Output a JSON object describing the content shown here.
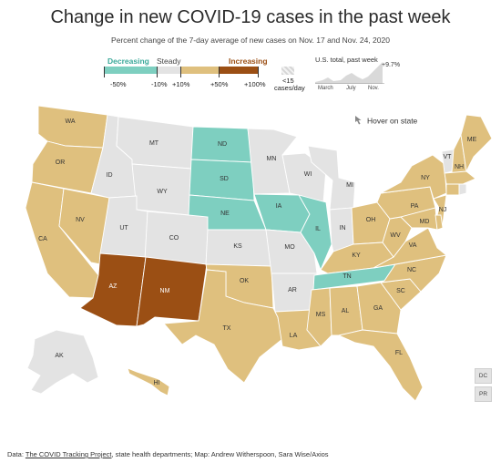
{
  "title": "Change in new COVID-19 cases in the past week",
  "subtitle": "Percent change of the 7-day average of new cases on Nov. 17 and Nov. 24, 2020",
  "legend": {
    "categories": [
      "Decreasing",
      "Steady",
      "Increasing"
    ],
    "ticks": [
      "-50%",
      "-10%",
      "+10%",
      "+50%",
      "+100%"
    ],
    "low_label": "<15",
    "low_label_sub": "cases/day",
    "colors": {
      "decreasing": "#7ecfc0",
      "steady": "#e3e3e3",
      "increasing": "#dfc07e",
      "big_increase": "#9b4f14",
      "low": "#e3e3e3"
    }
  },
  "us_total": {
    "title": "U.S. total, past week",
    "value": "+9.7%",
    "months": [
      "March",
      "July",
      "Nov."
    ]
  },
  "hover_hint": "Hover on state",
  "states": {
    "WA": "increasing",
    "OR": "increasing",
    "CA": "increasing",
    "NV": "increasing",
    "ID": "steady",
    "MT": "steady",
    "WY": "steady",
    "UT": "steady",
    "CO": "steady",
    "AZ": "big_increase",
    "NM": "big_increase",
    "ND": "decreasing",
    "SD": "decreasing",
    "NE": "decreasing",
    "KS": "steady",
    "OK": "increasing",
    "TX": "increasing",
    "MN": "steady",
    "IA": "decreasing",
    "MO": "steady",
    "AR": "steady",
    "LA": "increasing",
    "WI": "steady",
    "IL": "decreasing",
    "MI": "steady",
    "IN": "steady",
    "OH": "increasing",
    "KY": "increasing",
    "TN": "decreasing",
    "MS": "increasing",
    "AL": "increasing",
    "GA": "increasing",
    "FL": "increasing",
    "SC": "increasing",
    "NC": "increasing",
    "VA": "increasing",
    "WV": "increasing",
    "PA": "increasing",
    "NY": "increasing",
    "NJ": "increasing",
    "MD": "increasing",
    "DE": "increasing",
    "VT": "steady",
    "NH": "increasing",
    "ME": "increasing",
    "MA": "increasing",
    "CT": "increasing",
    "RI": "steady",
    "AK": "steady",
    "HI": "increasing",
    "DC": "steady",
    "PR": "steady"
  },
  "territories": [
    "DC",
    "PR"
  ],
  "footer": {
    "prefix": "Data: ",
    "link": "The COVID Tracking Project",
    "rest": ", state health departments; Map: Andrew Witherspoon, Sara Wise/Axios"
  }
}
